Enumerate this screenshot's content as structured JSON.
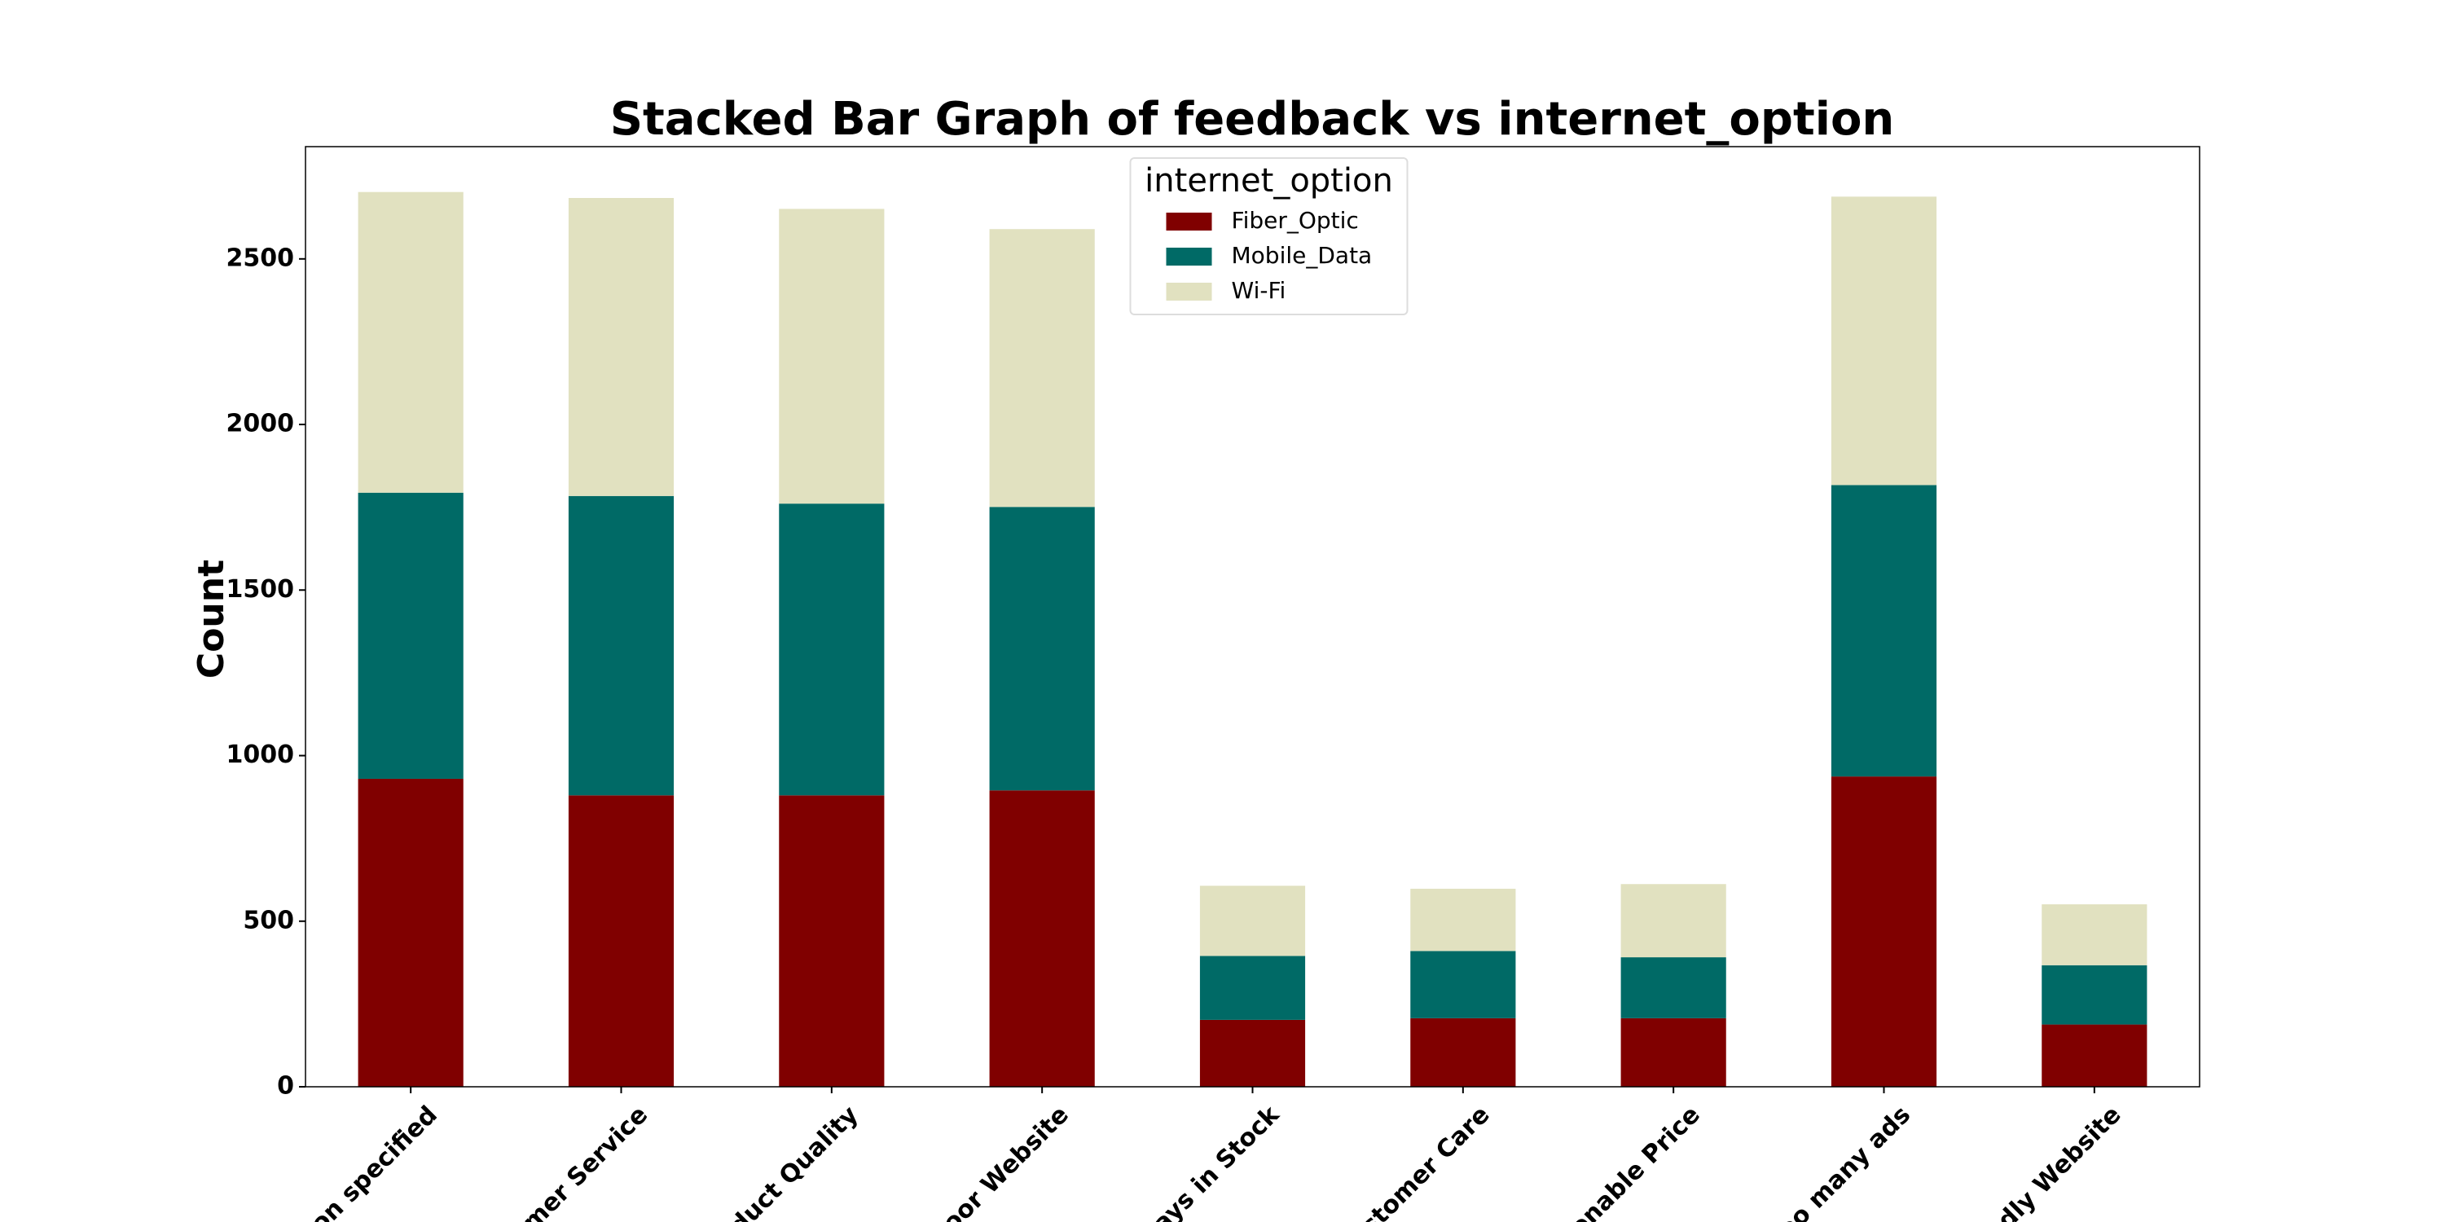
{
  "chart_data": {
    "type": "stacked_bar",
    "title": "Stacked Bar Graph of feedback vs internet_option",
    "y_label": "Count",
    "legend_title": "internet_option",
    "legend_position": "upper center",
    "categories": [
      "son specified",
      "tomer Service",
      "oduct Quality",
      "Poor Website",
      "ways in Stock",
      "ustomer Care",
      "sonable Price",
      "Too many ads",
      "ndly Website"
    ],
    "series": [
      {
        "name": "Fiber_Optic",
        "color": "#800000",
        "values": [
          930,
          880,
          880,
          895,
          202,
          207,
          207,
          937,
          188
        ]
      },
      {
        "name": "Mobile_Data",
        "color": "#006a66",
        "values": [
          864,
          904,
          881,
          856,
          193,
          203,
          184,
          880,
          179
        ]
      },
      {
        "name": "Wi-Fi",
        "color": "#e1e1c0",
        "values": [
          908,
          900,
          890,
          839,
          212,
          188,
          221,
          871,
          184
        ]
      }
    ],
    "ylim": [
      0,
      2839
    ],
    "yticks": [
      0,
      500,
      1000,
      1500,
      2000,
      2500
    ]
  }
}
